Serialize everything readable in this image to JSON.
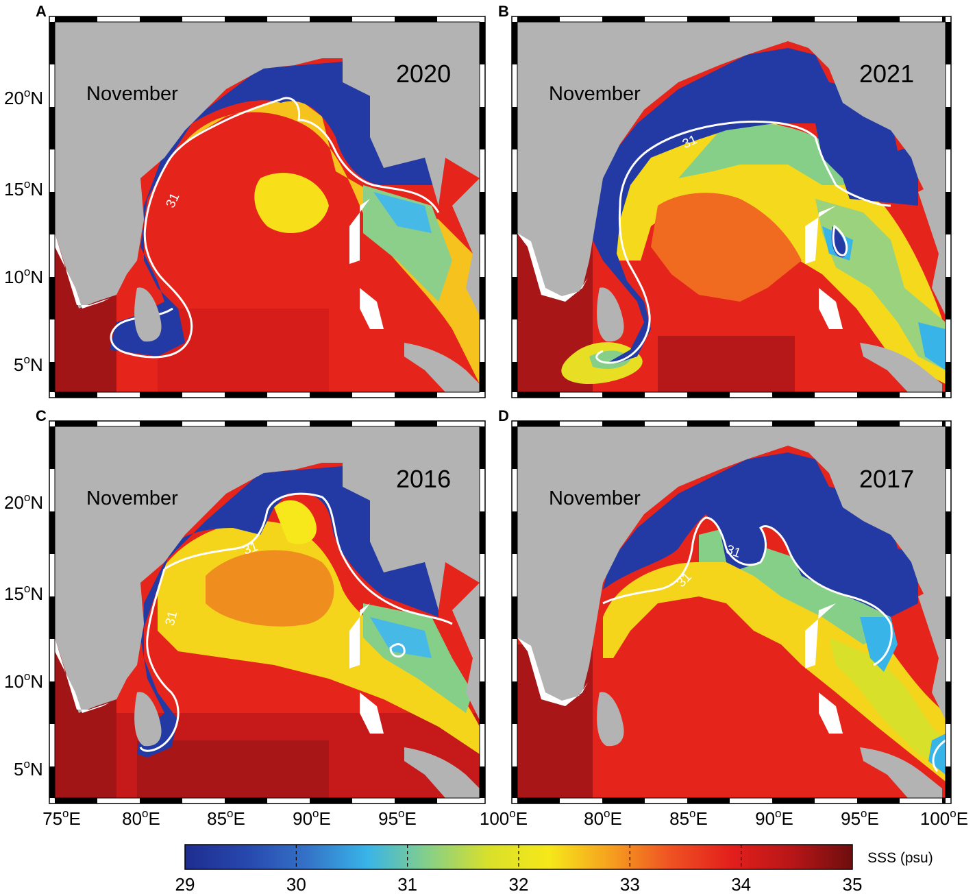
{
  "colorbar": {
    "title": "SSS (psu)",
    "ticks": [
      "29",
      "30",
      "31",
      "32",
      "33",
      "34",
      "35"
    ],
    "stops": [
      "#1e2d8f",
      "#2747ad",
      "#3472c7",
      "#38b4e8",
      "#86cf88",
      "#d9e02a",
      "#f6e81a",
      "#f6a11f",
      "#ef5223",
      "#e31f1c",
      "#b81618",
      "#6e0e0e"
    ]
  },
  "axes": {
    "lon_ticks": [
      "75",
      "80",
      "85",
      "90",
      "95",
      "100"
    ],
    "lon_suffix": "E",
    "lat_ticks": [
      "20",
      "15",
      "10",
      "5"
    ],
    "lat_suffix": "N",
    "deg": "o",
    "lon_range": [
      75,
      100
    ],
    "lat_range": [
      3.5,
      24
    ]
  },
  "panels": [
    {
      "letter": "A",
      "month": "November",
      "year": "2020",
      "contour_value": "31",
      "contour_labels": 1
    },
    {
      "letter": "B",
      "month": "November",
      "year": "2021",
      "contour_value": "31",
      "contour_labels": 1
    },
    {
      "letter": "C",
      "month": "November",
      "year": "2016",
      "contour_value": "31",
      "contour_labels": 2
    },
    {
      "letter": "D",
      "month": "November",
      "year": "2017",
      "contour_value": "31",
      "contour_labels": 2
    }
  ],
  "colors": {
    "land": "#b3b3b3",
    "coast_gap": "#ffffff",
    "contour": "#ffffff"
  }
}
